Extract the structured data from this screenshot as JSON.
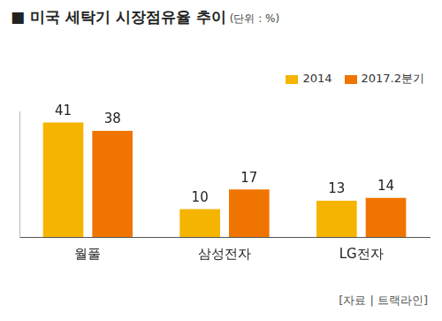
{
  "chart_data": {
    "type": "bar",
    "title": "■ 미국 세탁기 시장점유율 추이",
    "subtitle": "(단위 : %)",
    "annotations": [
      "[자료 | 트랙라인]"
    ],
    "categories": [
      "월풀",
      "삼성전자",
      "LG전자"
    ],
    "series": [
      {
        "name": "2014",
        "color": "#f5b400",
        "values": [
          41,
          10,
          13
        ]
      },
      {
        "name": "2017.2분기",
        "color": "#f07400",
        "values": [
          38,
          17,
          14
        ]
      }
    ],
    "ylim": [
      0,
      45
    ],
    "grid": false,
    "legend": "upper right",
    "data_labels": true,
    "tick_labels": "x"
  }
}
